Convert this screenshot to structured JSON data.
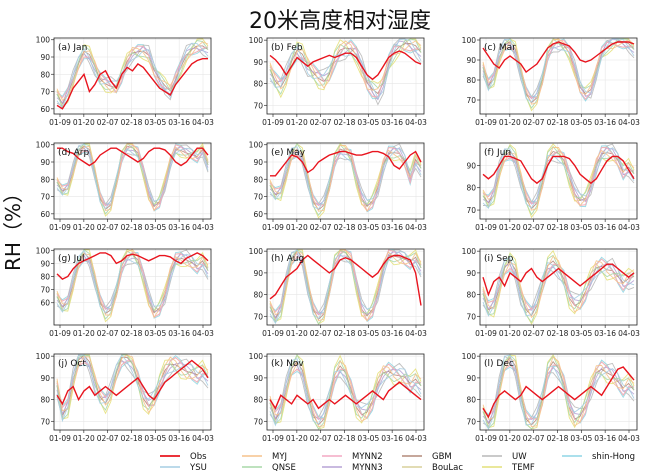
{
  "figure": {
    "title": "20米高度相对湿度",
    "ylabel": "RH（%）"
  },
  "legend": {
    "placement": "bottom-center",
    "entries": [
      {
        "name": "Obs",
        "color": "#e8141e"
      },
      {
        "name": "YSU",
        "color": "#a6cee3"
      },
      {
        "name": "MYJ",
        "color": "#f6c28b"
      },
      {
        "name": "QNSE",
        "color": "#a8d8a8"
      },
      {
        "name": "MYNN2",
        "color": "#f4a8c4"
      },
      {
        "name": "MYNN3",
        "color": "#b7a3d6"
      },
      {
        "name": "GBM",
        "color": "#b48a7a"
      },
      {
        "name": "BouLac",
        "color": "#d9d09c"
      },
      {
        "name": "UW",
        "color": "#b9b9b9"
      },
      {
        "name": "TEMF",
        "color": "#e4e07a"
      },
      {
        "name": "shin-Hong",
        "color": "#8fd6e6"
      }
    ]
  },
  "chart_data": [
    {
      "type": "line",
      "title": "(a) Jan",
      "xticks": [
        "01-09",
        "01-20",
        "02-07",
        "02-18",
        "03-05",
        "03-16",
        "04-03"
      ],
      "yticks": [
        60,
        70,
        80,
        90,
        100
      ],
      "ylim": [
        57,
        101
      ],
      "obs": [
        62,
        60,
        65,
        72,
        76,
        80,
        70,
        74,
        80,
        82,
        76,
        72,
        80,
        84,
        82,
        86,
        84,
        80,
        76,
        72,
        70,
        68,
        74,
        78,
        82,
        86,
        88,
        89,
        89
      ],
      "model_mean": [
        68,
        64,
        70,
        78,
        86,
        92,
        90,
        84,
        78,
        76,
        74,
        72,
        78,
        86,
        92,
        94,
        95,
        92,
        82,
        76,
        72,
        70,
        78,
        86,
        92,
        94,
        95,
        95,
        94
      ],
      "spread": 6
    },
    {
      "type": "line",
      "title": "(b) Feb",
      "xticks": [
        "01-09",
        "01-20",
        "02-07",
        "02-18",
        "03-05",
        "03-16",
        "04-03"
      ],
      "yticks": [
        70,
        80,
        90,
        100
      ],
      "ylim": [
        66,
        101
      ],
      "obs": [
        93,
        91,
        88,
        84,
        88,
        92,
        90,
        88,
        90,
        91,
        92,
        93,
        92,
        93,
        94,
        94,
        92,
        88,
        84,
        82,
        84,
        88,
        92,
        94,
        95,
        94,
        92,
        90,
        89
      ],
      "model_mean": [
        86,
        82,
        80,
        84,
        90,
        94,
        92,
        88,
        86,
        84,
        82,
        84,
        90,
        94,
        96,
        97,
        95,
        88,
        80,
        76,
        74,
        80,
        90,
        96,
        98,
        98,
        97,
        96,
        94
      ],
      "spread": 6
    },
    {
      "type": "line",
      "title": "(c) Mar",
      "xticks": [
        "01-09",
        "01-20",
        "02-07",
        "02-18",
        "03-05",
        "03-16",
        "04-03"
      ],
      "yticks": [
        70,
        80,
        90,
        100
      ],
      "ylim": [
        63,
        101
      ],
      "obs": [
        96,
        92,
        88,
        86,
        90,
        92,
        90,
        88,
        84,
        86,
        88,
        92,
        96,
        98,
        99,
        98,
        97,
        94,
        90,
        89,
        90,
        92,
        94,
        96,
        98,
        99,
        99,
        99,
        98
      ],
      "model_mean": [
        86,
        78,
        82,
        92,
        97,
        98,
        94,
        84,
        74,
        70,
        72,
        80,
        92,
        97,
        98,
        98,
        95,
        86,
        76,
        72,
        74,
        84,
        94,
        98,
        99,
        99,
        98,
        97,
        95
      ],
      "spread": 5
    },
    {
      "type": "line",
      "title": "(d) Arp",
      "xticks": [
        "01-09",
        "01-20",
        "02-07",
        "02-18",
        "03-05",
        "03-16",
        "04-03"
      ],
      "yticks": [
        60,
        70,
        80,
        90,
        100
      ],
      "ylim": [
        57,
        101
      ],
      "obs": [
        98,
        98,
        96,
        95,
        92,
        90,
        88,
        90,
        94,
        96,
        98,
        98,
        96,
        94,
        92,
        90,
        92,
        96,
        98,
        98,
        97,
        94,
        90,
        88,
        90,
        94,
        98,
        98,
        94
      ],
      "model_mean": [
        78,
        74,
        76,
        86,
        96,
        98,
        96,
        84,
        70,
        64,
        66,
        78,
        92,
        98,
        98,
        96,
        86,
        72,
        64,
        66,
        76,
        90,
        98,
        98,
        96,
        94,
        92,
        96,
        88
      ],
      "spread": 5
    },
    {
      "type": "line",
      "title": "(e) May",
      "xticks": [
        "01-09",
        "01-20",
        "02-07",
        "02-18",
        "03-05",
        "03-16",
        "04-03"
      ],
      "yticks": [
        60,
        70,
        80,
        90,
        100
      ],
      "ylim": [
        57,
        101
      ],
      "obs": [
        82,
        82,
        86,
        90,
        94,
        93,
        90,
        84,
        86,
        90,
        92,
        94,
        95,
        96,
        96,
        95,
        94,
        94,
        95,
        96,
        96,
        95,
        93,
        88,
        86,
        90,
        94,
        96,
        90
      ],
      "model_mean": [
        76,
        72,
        74,
        84,
        94,
        96,
        92,
        80,
        68,
        64,
        66,
        76,
        90,
        96,
        96,
        94,
        82,
        70,
        64,
        66,
        74,
        88,
        96,
        97,
        96,
        90,
        80,
        90,
        86
      ],
      "spread": 6
    },
    {
      "type": "line",
      "title": "(f) Jun",
      "xticks": [
        "01-09",
        "01-20",
        "02-07",
        "02-18",
        "03-05",
        "03-16",
        "04-03"
      ],
      "yticks": [
        70,
        80,
        90
      ],
      "ylim": [
        66,
        100
      ],
      "obs": [
        86,
        84,
        86,
        90,
        94,
        94,
        93,
        92,
        88,
        84,
        82,
        84,
        90,
        94,
        94,
        94,
        93,
        90,
        86,
        84,
        82,
        84,
        88,
        92,
        94,
        94,
        92,
        88,
        84
      ],
      "model_mean": [
        76,
        74,
        78,
        88,
        94,
        95,
        92,
        84,
        76,
        72,
        74,
        82,
        92,
        95,
        95,
        93,
        86,
        78,
        74,
        74,
        80,
        90,
        96,
        97,
        96,
        92,
        86,
        88,
        86
      ],
      "spread": 5
    },
    {
      "type": "line",
      "title": "(g) Jul",
      "xticks": [
        "01-09",
        "01-20",
        "02-07",
        "02-18",
        "03-05",
        "03-16",
        "04-03"
      ],
      "yticks": [
        60,
        70,
        80,
        90,
        100
      ],
      "ylim": [
        43,
        101
      ],
      "obs": [
        82,
        78,
        80,
        86,
        90,
        92,
        94,
        96,
        98,
        98,
        96,
        90,
        92,
        96,
        97,
        96,
        94,
        92,
        94,
        96,
        96,
        95,
        92,
        90,
        94,
        96,
        98,
        96,
        92
      ],
      "model_mean": [
        64,
        58,
        62,
        76,
        90,
        96,
        92,
        78,
        62,
        54,
        56,
        68,
        86,
        94,
        96,
        94,
        82,
        64,
        52,
        54,
        64,
        82,
        94,
        96,
        94,
        90,
        86,
        90,
        84
      ],
      "spread": 8
    },
    {
      "type": "line",
      "title": "(h) Aug",
      "xticks": [
        "01-09",
        "01-20",
        "02-07",
        "02-18",
        "03-05",
        "03-16",
        "04-03"
      ],
      "yticks": [
        70,
        80,
        90,
        100
      ],
      "ylim": [
        66,
        101
      ],
      "obs": [
        78,
        80,
        84,
        88,
        90,
        92,
        96,
        98,
        96,
        94,
        92,
        90,
        92,
        96,
        97,
        96,
        94,
        92,
        90,
        88,
        90,
        94,
        97,
        98,
        98,
        97,
        96,
        90,
        75
      ],
      "model_mean": [
        74,
        70,
        74,
        86,
        96,
        99,
        96,
        84,
        74,
        70,
        72,
        82,
        94,
        99,
        99,
        97,
        86,
        74,
        70,
        72,
        80,
        92,
        99,
        99,
        98,
        96,
        94,
        96,
        92
      ],
      "spread": 5
    },
    {
      "type": "line",
      "title": "(i) Sep",
      "xticks": [
        "01-09",
        "01-20",
        "02-07",
        "02-18",
        "03-05",
        "03-16",
        "04-03"
      ],
      "yticks": [
        70,
        80,
        90,
        100
      ],
      "ylim": [
        66,
        101
      ],
      "obs": [
        88,
        80,
        86,
        88,
        84,
        90,
        88,
        86,
        90,
        92,
        88,
        86,
        88,
        90,
        92,
        90,
        88,
        86,
        84,
        86,
        88,
        90,
        92,
        94,
        94,
        92,
        90,
        88,
        90
      ],
      "model_mean": [
        80,
        74,
        76,
        84,
        92,
        94,
        90,
        80,
        74,
        72,
        76,
        84,
        92,
        94,
        92,
        88,
        80,
        76,
        76,
        80,
        86,
        92,
        94,
        93,
        92,
        88,
        84,
        86,
        88
      ],
      "spread": 6
    },
    {
      "type": "line",
      "title": "(j) Oct",
      "xticks": [
        "01-09",
        "01-20",
        "02-07",
        "02-18",
        "03-05",
        "03-16",
        "04-03"
      ],
      "yticks": [
        70,
        80,
        90,
        100
      ],
      "ylim": [
        66,
        101
      ],
      "obs": [
        82,
        78,
        84,
        86,
        80,
        84,
        86,
        82,
        84,
        86,
        84,
        82,
        84,
        86,
        88,
        90,
        86,
        82,
        80,
        84,
        88,
        90,
        92,
        94,
        96,
        98,
        96,
        94,
        90
      ],
      "model_mean": [
        86,
        74,
        78,
        90,
        98,
        99,
        96,
        88,
        82,
        80,
        84,
        92,
        98,
        98,
        96,
        90,
        82,
        78,
        80,
        86,
        92,
        96,
        97,
        96,
        94,
        92,
        90,
        92,
        90
      ],
      "spread": 6
    },
    {
      "type": "line",
      "title": "(k) Nov",
      "xticks": [
        "01-09",
        "01-20",
        "02-07",
        "02-18",
        "03-05",
        "03-16",
        "04-03"
      ],
      "yticks": [
        70,
        80,
        90,
        100
      ],
      "ylim": [
        66,
        101
      ],
      "obs": [
        80,
        76,
        82,
        80,
        78,
        82,
        80,
        78,
        80,
        76,
        78,
        80,
        78,
        80,
        82,
        80,
        78,
        80,
        82,
        84,
        82,
        80,
        84,
        86,
        88,
        86,
        84,
        82,
        80
      ],
      "model_mean": [
        78,
        72,
        76,
        86,
        94,
        96,
        92,
        82,
        74,
        70,
        72,
        80,
        90,
        94,
        92,
        86,
        78,
        74,
        74,
        78,
        86,
        92,
        94,
        93,
        92,
        90,
        86,
        88,
        86
      ],
      "spread": 6
    },
    {
      "type": "line",
      "title": "(l) Dec",
      "xticks": [
        "01-09",
        "01-20",
        "02-07",
        "02-18",
        "03-05",
        "03-16",
        "04-03"
      ],
      "yticks": [
        70,
        80,
        90,
        100
      ],
      "ylim": [
        66,
        101
      ],
      "obs": [
        76,
        72,
        78,
        82,
        84,
        82,
        80,
        82,
        86,
        84,
        82,
        80,
        82,
        84,
        86,
        84,
        82,
        80,
        82,
        84,
        86,
        84,
        82,
        86,
        90,
        94,
        95,
        92,
        89
      ],
      "model_mean": [
        74,
        70,
        74,
        86,
        96,
        98,
        94,
        82,
        72,
        70,
        72,
        80,
        92,
        96,
        94,
        88,
        78,
        72,
        72,
        76,
        84,
        92,
        95,
        94,
        92,
        88,
        84,
        86,
        84
      ],
      "spread": 6
    }
  ]
}
